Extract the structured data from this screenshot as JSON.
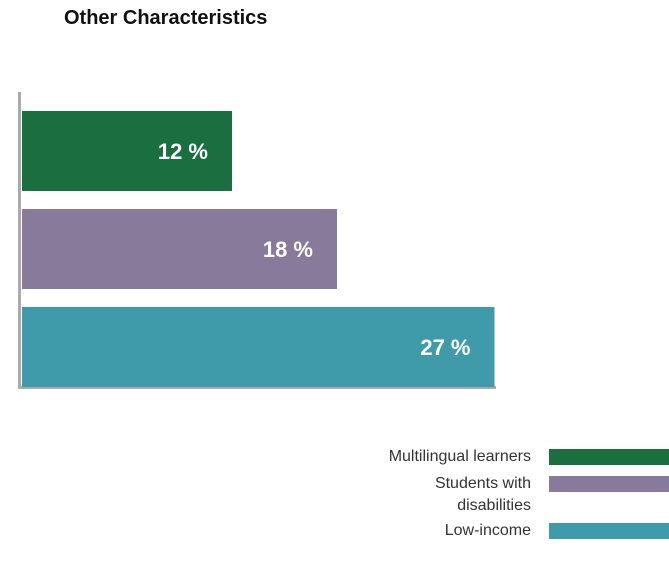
{
  "chart_data": {
    "type": "bar",
    "orientation": "horizontal",
    "title": "Other Characteristics",
    "categories": [
      "Multilingual learners",
      "Students with disabilities",
      "Low-income"
    ],
    "values": [
      12,
      18,
      27
    ],
    "value_labels": [
      "12 %",
      "18 %",
      "27 %"
    ],
    "colors": [
      "#1a6e40",
      "#877a9a",
      "#3f9aaa"
    ],
    "xlabel": "",
    "ylabel": "",
    "grid": false,
    "legend_position": "bottom-right",
    "legend": [
      {
        "label": "Multilingual learners",
        "color": "#1a6e40"
      },
      {
        "label": "Students with disabilities",
        "color": "#877a9a"
      },
      {
        "label": "Low-income",
        "color": "#3f9aaa"
      }
    ]
  }
}
